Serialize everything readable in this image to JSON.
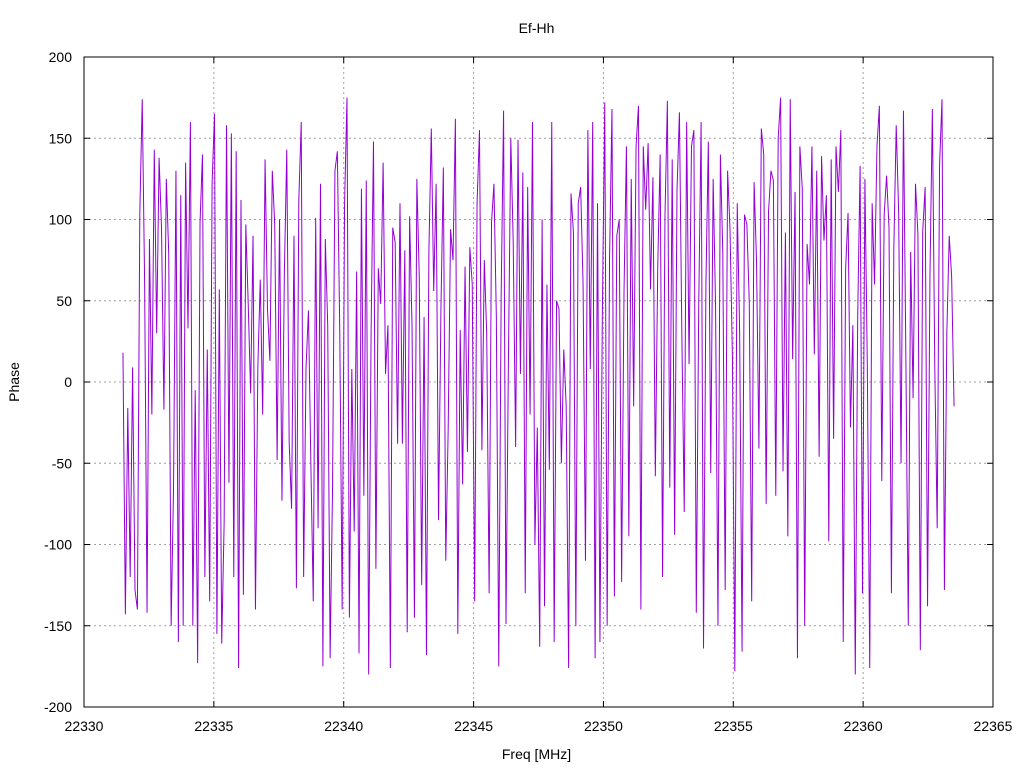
{
  "chart_data": {
    "type": "line",
    "title": "Ef-Hh",
    "xlabel": "Freq [MHz]",
    "ylabel": "Phase",
    "xlim": [
      22330,
      22365
    ],
    "ylim": [
      -200,
      200
    ],
    "xticks": [
      22330,
      22335,
      22340,
      22345,
      22350,
      22355,
      22360,
      22365
    ],
    "yticks": [
      200,
      150,
      100,
      50,
      0,
      -50,
      -100,
      -150,
      -200
    ],
    "grid": true,
    "legend": "none",
    "line_color": "#9400d3",
    "series": [
      {
        "x_start": 22331.5,
        "x_end": 22363.5,
        "y": [
          18,
          -143,
          -16,
          -120,
          9,
          -128,
          -140,
          104,
          174,
          60,
          -142,
          88,
          -20,
          143,
          30,
          138,
          95,
          -17,
          125,
          79,
          -150,
          -65,
          130,
          -160,
          115,
          -150,
          135,
          33,
          160,
          -150,
          -5,
          -173,
          98,
          140,
          -120,
          20,
          -135,
          122,
          165,
          -155,
          57,
          -161,
          -87,
          158,
          -62,
          153,
          -120,
          142,
          -176,
          112,
          -131,
          97,
          48,
          -7,
          90,
          -140,
          10,
          63,
          -20,
          137,
          45,
          13,
          130,
          97,
          -48,
          100,
          -73,
          67,
          143,
          -37,
          -78,
          90,
          -127,
          112,
          160,
          -120,
          9,
          44,
          -50,
          -135,
          101,
          -90,
          122,
          -175,
          88,
          35,
          -170,
          -65,
          130,
          142,
          31,
          -140,
          110,
          175,
          -145,
          8,
          -92,
          68,
          -167,
          119,
          -70,
          124,
          -180,
          30,
          148,
          -115,
          70,
          48,
          135,
          5,
          35,
          -176,
          95,
          86,
          -38,
          110,
          -38,
          81,
          -154,
          102,
          34,
          -145,
          125,
          65,
          -125,
          40,
          -168,
          80,
          156,
          56,
          122,
          -85,
          45,
          132,
          -110,
          -30,
          94,
          75,
          162,
          -155,
          32,
          -63,
          71,
          -43,
          83,
          60,
          -135,
          110,
          155,
          -42,
          75,
          30,
          -130,
          98,
          122,
          40,
          -175,
          53,
          167,
          -149,
          11,
          150,
          86,
          -40,
          149,
          5,
          129,
          -130,
          120,
          -20,
          160,
          -100,
          -28,
          -163,
          100,
          -138,
          60,
          -54,
          160,
          -160,
          50,
          45,
          -50,
          20,
          -15,
          -176,
          116,
          92,
          -150,
          110,
          120,
          60,
          -110,
          155,
          8,
          160,
          -170,
          110,
          -160,
          41,
          172,
          -150,
          76,
          168,
          -132,
          90,
          100,
          -123,
          56,
          145,
          -95,
          125,
          -15,
          145,
          170,
          -140,
          145,
          106,
          147,
          57,
          126,
          -58,
          71,
          140,
          -120,
          102,
          173,
          -65,
          137,
          -94,
          118,
          166,
          30,
          -80,
          160,
          11,
          145,
          155,
          -142,
          45,
          160,
          -164,
          60,
          148,
          -56,
          125,
          47,
          -150,
          140,
          80,
          -128,
          130,
          94,
          15,
          -178,
          110,
          30,
          -166,
          103,
          97,
          49,
          -135,
          123,
          75,
          -41,
          156,
          140,
          -75,
          105,
          130,
          124,
          -70,
          150,
          175,
          -55,
          92,
          -95,
          174,
          14,
          117,
          -170,
          145,
          119,
          -150,
          85,
          60,
          145,
          17,
          130,
          -46,
          139,
          87,
          115,
          -98,
          137,
          -35,
          145,
          117,
          155,
          -160,
          70,
          104,
          -28,
          35,
          -180,
          40,
          133,
          -130,
          125,
          10,
          -176,
          110,
          60,
          145,
          170,
          -61,
          103,
          127,
          95,
          -130,
          82,
          158,
          105,
          -50,
          167,
          15,
          -150,
          80,
          -10,
          122,
          91,
          -165,
          93,
          120,
          -138,
          65,
          168,
          10,
          -90,
          134,
          174,
          -128,
          30,
          90,
          65,
          -15
        ]
      }
    ]
  }
}
